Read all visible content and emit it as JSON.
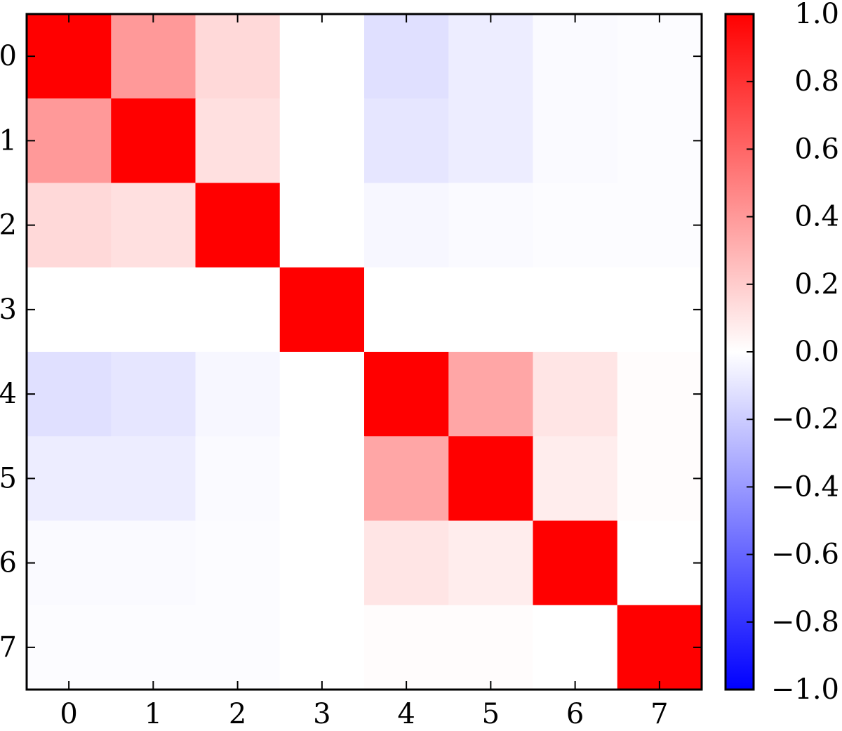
{
  "chart_data": {
    "type": "heatmap",
    "title": "",
    "xlabel": "",
    "ylabel": "",
    "x_tick_labels": [
      "0",
      "1",
      "2",
      "3",
      "4",
      "5",
      "6",
      "7"
    ],
    "y_tick_labels": [
      "0",
      "1",
      "2",
      "3",
      "4",
      "5",
      "6",
      "7"
    ],
    "values": [
      [
        1.0,
        0.4,
        0.15,
        0.0,
        -0.12,
        -0.07,
        -0.02,
        -0.01
      ],
      [
        0.4,
        1.0,
        0.12,
        0.0,
        -0.1,
        -0.07,
        -0.02,
        -0.01
      ],
      [
        0.15,
        0.12,
        1.0,
        0.0,
        -0.03,
        -0.02,
        -0.01,
        -0.01
      ],
      [
        0.0,
        0.0,
        0.0,
        1.0,
        0.0,
        0.0,
        0.0,
        0.0
      ],
      [
        -0.12,
        -0.1,
        -0.03,
        0.0,
        1.0,
        0.35,
        0.1,
        0.01
      ],
      [
        -0.07,
        -0.07,
        -0.02,
        0.0,
        0.35,
        1.0,
        0.07,
        0.01
      ],
      [
        -0.02,
        -0.02,
        -0.01,
        0.0,
        0.1,
        0.07,
        1.0,
        0.0
      ],
      [
        -0.01,
        -0.01,
        -0.01,
        0.0,
        0.01,
        0.01,
        0.0,
        1.0
      ]
    ],
    "colormap": "bwr",
    "colors": {
      "low": "#0000ff",
      "mid": "#ffffff",
      "high": "#ff0000"
    },
    "vmin": -1.0,
    "vmax": 1.0,
    "colorbar_ticks": [
      1.0,
      0.8,
      0.6,
      0.4,
      0.2,
      0.0,
      -0.2,
      -0.4,
      -0.6,
      -0.8,
      -1.0
    ],
    "colorbar_tick_labels": [
      "1.0",
      "0.8",
      "0.6",
      "0.4",
      "0.2",
      "0.0",
      "−0.2",
      "−0.4",
      "−0.6",
      "−0.8",
      "−1.0"
    ],
    "grid": false,
    "legend": "none"
  }
}
